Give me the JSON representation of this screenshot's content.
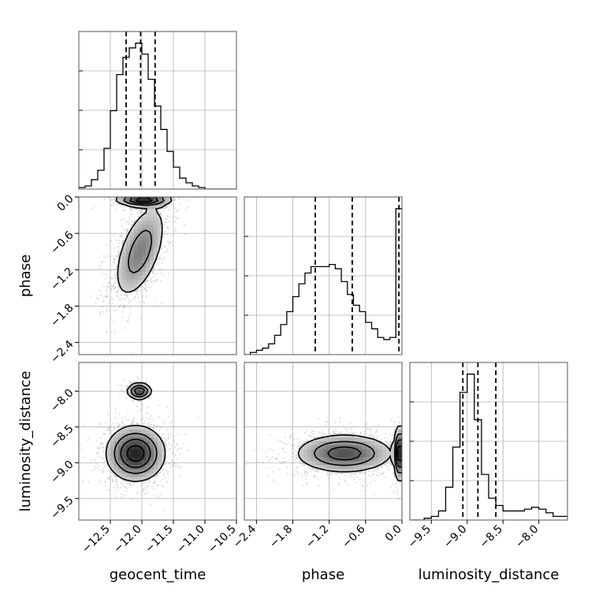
{
  "chart_data": {
    "type": "corner",
    "parameters": [
      "geocent_time",
      "phase",
      "luminosity_distance"
    ],
    "axis_labels": {
      "geocent_time": "geocent_time",
      "phase": "phase",
      "luminosity_distance": "luminosity_distance"
    },
    "ranges": {
      "geocent_time": [
        -13.0,
        -10.5
      ],
      "phase": [
        -2.6,
        0.0
      ],
      "luminosity_distance": [
        -9.8,
        -7.6
      ]
    },
    "ticks": {
      "geocent_time": [
        -12.5,
        -12.0,
        -11.5,
        -11.0,
        -10.5
      ],
      "phase": [
        -2.4,
        -1.8,
        -1.2,
        -0.6,
        0.0
      ],
      "luminosity_distance": [
        -9.5,
        -9.0,
        -8.5,
        -8.0
      ]
    },
    "tick_labels": {
      "geocent_time": [
        "−12.5",
        "−12.0",
        "−11.5",
        "−11.0",
        "−10.5"
      ],
      "phase": [
        "−2.4",
        "−1.8",
        "−1.2",
        "−0.6",
        "0.0"
      ],
      "luminosity_distance": [
        "−9.5",
        "−9.0",
        "−8.5",
        "−8.0"
      ]
    },
    "histograms": {
      "geocent_time": {
        "edges_start": -13.0,
        "bin_width": 0.1,
        "counts": [
          1,
          2,
          6,
          12,
          26,
          50,
          73,
          84,
          90,
          93,
          86,
          70,
          53,
          38,
          24,
          14,
          7,
          4,
          2,
          1,
          0,
          0,
          0,
          0,
          0
        ],
        "quantiles": [
          -12.25,
          -12.02,
          -11.79
        ]
      },
      "phase": {
        "edges_start": -2.6,
        "bin_width": 0.1,
        "counts": [
          0,
          1,
          2,
          3,
          5,
          9,
          14,
          20,
          27,
          33,
          38,
          41,
          41,
          41,
          42,
          40,
          34,
          28,
          23,
          20,
          15,
          12,
          8,
          7,
          8,
          68
        ],
        "quantiles": [
          -1.43,
          -0.82,
          -0.05
        ]
      },
      "luminosity_distance": {
        "edges_start": -9.8,
        "bin_width": 0.1,
        "counts": [
          0,
          0,
          1,
          2,
          5,
          18,
          40,
          70,
          80,
          55,
          25,
          12,
          8,
          5,
          5,
          5,
          6,
          7,
          6,
          4,
          2,
          2
        ],
        "quantiles": [
          -9.06,
          -8.85,
          -8.6
        ]
      }
    },
    "pairs": [
      {
        "x": "geocent_time",
        "y": "phase",
        "modes": [
          {
            "center": [
              -12.03,
              -0.9
            ],
            "sigma": [
              0.22,
              0.42
            ],
            "rho": 0.55,
            "weight": 0.75
          },
          {
            "center": [
              -11.98,
              -0.04
            ],
            "sigma": [
              0.22,
              0.06
            ],
            "rho": 0.0,
            "weight": 0.25
          }
        ]
      },
      {
        "x": "geocent_time",
        "y": "luminosity_distance",
        "modes": [
          {
            "center": [
              -12.1,
              -8.87
            ],
            "sigma": [
              0.24,
              0.2
            ],
            "rho": 0.0,
            "weight": 0.9
          },
          {
            "center": [
              -12.04,
              -8.0
            ],
            "sigma": [
              0.1,
              0.06
            ],
            "rho": 0.0,
            "weight": 0.1
          }
        ]
      },
      {
        "x": "phase",
        "y": "luminosity_distance",
        "modes": [
          {
            "center": [
              -0.95,
              -8.87
            ],
            "sigma": [
              0.42,
              0.14
            ],
            "rho": 0.0,
            "weight": 0.8
          },
          {
            "center": [
              -0.03,
              -8.87
            ],
            "sigma": [
              0.05,
              0.2
            ],
            "rho": 0.0,
            "weight": 0.2
          }
        ]
      }
    ],
    "grid": true,
    "style": {
      "line_color": "#000000",
      "grid_color": "#b0b0b0",
      "scatter_color": "#a0a0a0",
      "quantile_line": "dashed"
    }
  }
}
